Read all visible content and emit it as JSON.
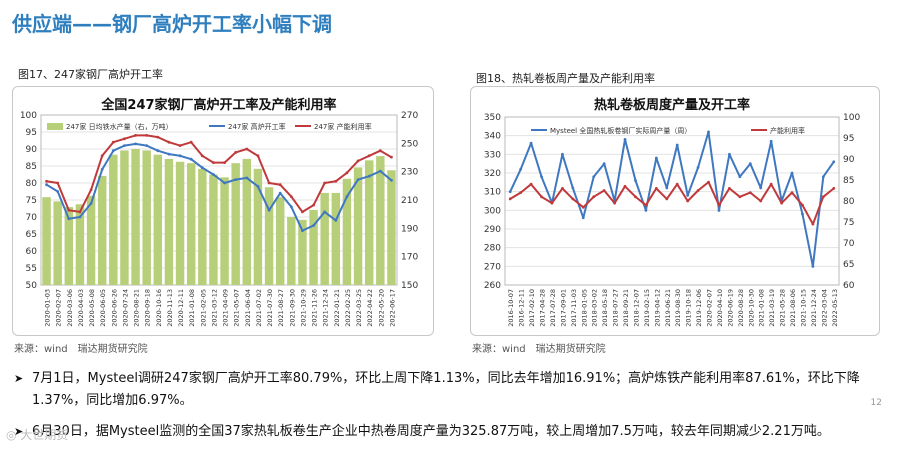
{
  "page": {
    "title": "供应端——钢厂高炉开工率小幅下调",
    "left_caption": "图17、247家钢厂高炉开工率",
    "right_caption": "图18、热轧卷板周产量及产能利用率",
    "source_left": "来源：wind　瑞达期货研究院",
    "source_right": "来源：wind　瑞达期货研究院",
    "bullet1": "7月1日，Mysteel调研247家钢厂高炉开工率80.79%，环比上周下降1.13%，同比去年增加16.91%；高炉炼铁产能利用率87.61%，环比下降1.37%，同比增加6.97%。",
    "bullet2": "6月30日，据Mysteel监测的全国37家热轧板卷生产企业中热卷周度产量为325.87万吨，较上周增加7.5万吨，较去年同期减少2.21万吨。",
    "page_number": "12",
    "watermark": "◎ 大世期货"
  },
  "chart_data": [
    {
      "type": "bar+line",
      "title": "全国247家钢厂高炉开工率及产能利用率",
      "x_ticks": [
        "2020-01-03",
        "2020-02-07",
        "2020-03-06",
        "2020-04-03",
        "2020-05-08",
        "2020-06-05",
        "2020-06-26",
        "2020-07-24",
        "2020-08-21",
        "2020-09-18",
        "2020-10-16",
        "2020-11-13",
        "2020-12-11",
        "2021-01-08",
        "2021-02-05",
        "2021-03-12",
        "2021-04-09",
        "2021-05-07",
        "2021-06-04",
        "2021-07-02",
        "2021-07-30",
        "2021-08-27",
        "2021-09-30",
        "2021-10-29",
        "2021-11-26",
        "2021-12-24",
        "2022-01-21",
        "2022-02-25",
        "2022-03-25",
        "2022-04-22",
        "2022-05-20",
        "2022-06-17"
      ],
      "left_axis": {
        "ticks": [
          "50",
          "55",
          "60",
          "65",
          "70",
          "75",
          "80",
          "85",
          "90",
          "95",
          "100"
        ],
        "min": 50,
        "max": 100
      },
      "right_axis": {
        "ticks": [
          "150",
          "170",
          "190",
          "210",
          "230",
          "250",
          "270"
        ],
        "min": 150,
        "max": 270
      },
      "series": [
        {
          "name": "247家 日均铁水产量（右，万吨）",
          "type": "bar",
          "axis": "right",
          "color": "#b8cf7a",
          "values": [
            212,
            209,
            205,
            207,
            213,
            227,
            242,
            245,
            246,
            245,
            242,
            239,
            237,
            236,
            232,
            228,
            226,
            236,
            239,
            232,
            219,
            212,
            198,
            196,
            203,
            215,
            215,
            225,
            233,
            238,
            241,
            231
          ]
        },
        {
          "name": "247家 高炉开工率",
          "type": "line",
          "axis": "left",
          "color": "#3f78c0",
          "values": [
            79.5,
            77.5,
            69.5,
            70,
            74,
            84,
            89.5,
            91,
            91.5,
            91,
            89.5,
            88.5,
            88,
            87,
            84.5,
            82.5,
            80,
            81,
            81.5,
            79,
            72,
            77,
            73,
            66,
            67.5,
            71.5,
            69,
            76,
            81,
            82,
            83.5,
            80.8
          ]
        },
        {
          "name": "247家 产能利用率",
          "type": "line",
          "axis": "left",
          "color": "#c0393b",
          "values": [
            80.5,
            80,
            72,
            71.5,
            78,
            88,
            92,
            93,
            94,
            94,
            93.5,
            92,
            91,
            92,
            88,
            86,
            86,
            89,
            90,
            88,
            80,
            79.5,
            76,
            71.5,
            73.5,
            80,
            80.5,
            83,
            86.5,
            88,
            89.5,
            87.6
          ]
        }
      ]
    },
    {
      "type": "line",
      "title": "热轧卷板周度产量及开工率",
      "x_ticks": [
        "2016-10-07",
        "2016-12-11",
        "2017-02-10",
        "2017-04-28",
        "2017-07-28",
        "2017-09-01",
        "2017-11-03",
        "2018-01-05",
        "2018-03-02",
        "2018-05-18",
        "2018-07-27",
        "2018-09-21",
        "2018-12-07",
        "2019-02-15",
        "2019-04-12",
        "2019-06-21",
        "2019-08-30",
        "2019-10-18",
        "2019-12-06",
        "2020-02-07",
        "2020-04-10",
        "2020-06-19",
        "2020-08-28",
        "2020-10-30",
        "2021-01-08",
        "2021-03-19",
        "2021-05-28",
        "2021-08-06",
        "2021-10-15",
        "2021-12-24",
        "2022-03-04",
        "2022-05-13"
      ],
      "left_axis": {
        "ticks": [
          "260",
          "270",
          "280",
          "290",
          "300",
          "310",
          "320",
          "330",
          "340",
          "350"
        ],
        "min": 260,
        "max": 350
      },
      "right_axis": {
        "ticks": [
          "60",
          "65",
          "70",
          "75",
          "80",
          "85",
          "90",
          "95",
          "100"
        ],
        "min": 60,
        "max": 100
      },
      "series": [
        {
          "name": "Mysteel 全国热轧板卷钢厂实际周产量（周）",
          "type": "line",
          "axis": "left",
          "color": "#3f78c0",
          "values": [
            310,
            322,
            336,
            318,
            304,
            330,
            312,
            296,
            318,
            325,
            305,
            338,
            316,
            300,
            328,
            312,
            335,
            308,
            323,
            342,
            300,
            330,
            318,
            325,
            312,
            337,
            305,
            320,
            298,
            270,
            318,
            326
          ]
        },
        {
          "name": "产能利用率",
          "type": "line",
          "axis": "right",
          "color": "#c0393b",
          "values": [
            80.5,
            82,
            84,
            81,
            79.5,
            83,
            80.5,
            78.5,
            81,
            82.5,
            79.5,
            83.5,
            81,
            79,
            83,
            80.5,
            84,
            80,
            82.5,
            84.5,
            79,
            83,
            81,
            82,
            80,
            84,
            79.5,
            82,
            79,
            74.5,
            81,
            83
          ]
        }
      ]
    }
  ]
}
